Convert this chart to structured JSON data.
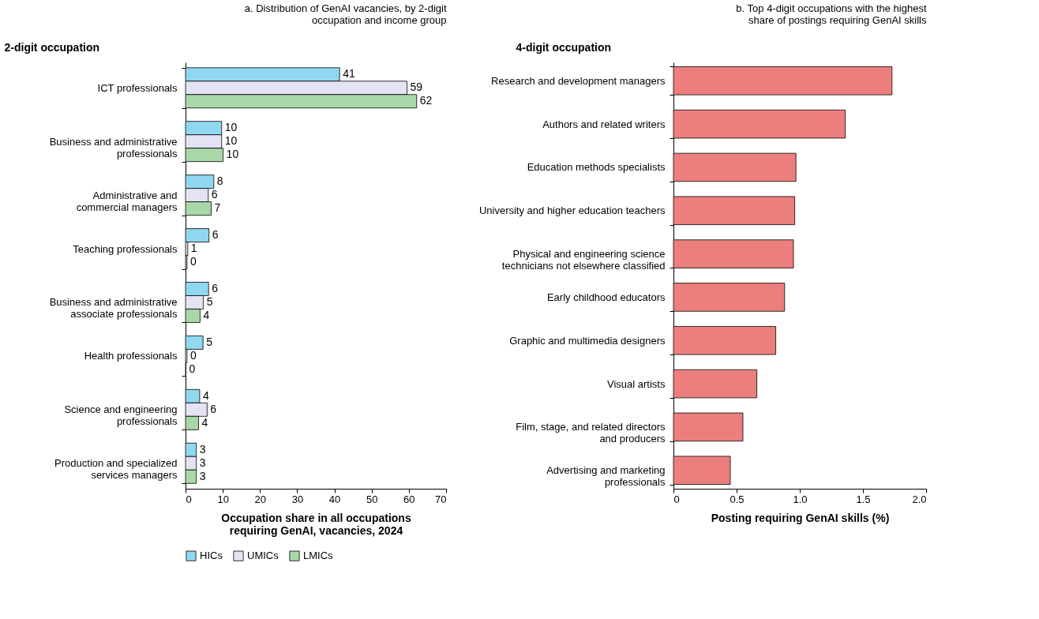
{
  "chart_data": [
    {
      "type": "bar",
      "orientation": "horizontal",
      "title": "a. Distribution of GenAI vacancies, by 2-digit\noccupation and income group",
      "ylabel": "2-digit occupation",
      "xlabel": "Occupation share in all occupations\nrequiring GenAI, vacancies, 2024",
      "categories": [
        "ICT professionals",
        "Business and administrative\nprofessionals",
        "Administrative and\ncommercial managers",
        "Teaching professionals",
        "Business and administrative\nassociate professionals",
        "Health professionals",
        "Science and engineering\nprofessionals",
        "Production and specialized\nservices managers"
      ],
      "series": [
        {
          "name": "HICs",
          "color": "#8fd8f0",
          "values": [
            41.4,
            9.7,
            7.6,
            6.3,
            6.2,
            4.7,
            3.8,
            2.9
          ],
          "value_labels": [
            "41",
            "10",
            "8",
            "6",
            "6",
            "5",
            "4",
            "3"
          ]
        },
        {
          "name": "UMICs",
          "color": "#e3e3f3",
          "values": [
            59.5,
            9.7,
            6.1,
            0.6,
            4.8,
            0.4,
            5.8,
            2.9
          ],
          "value_labels": [
            "59",
            "10",
            "6",
            "1",
            "5",
            "0",
            "6",
            "3"
          ]
        },
        {
          "name": "LMICs",
          "color": "#a8d8a8",
          "values": [
            62.1,
            10.1,
            6.9,
            0.4,
            3.9,
            0.1,
            3.5,
            2.9
          ],
          "value_labels": [
            "62",
            "10",
            "7",
            "0",
            "4",
            "0",
            "4",
            "3"
          ]
        }
      ],
      "xlim": [
        0,
        70
      ],
      "xticks": [
        0,
        10,
        20,
        30,
        40,
        50,
        60,
        70
      ],
      "legend": "bottom",
      "grid": false
    },
    {
      "type": "bar",
      "orientation": "horizontal",
      "title": "b. Top 4-digit occupations with the highest\nshare of postings requiring GenAI skills",
      "ylabel": "4-digit occupation",
      "xlabel": "Posting requiring GenAI skills (%)",
      "categories": [
        "Research and development managers",
        "Authors and related writers",
        "Education methods specialists",
        "University and higher education teachers",
        "Physical and engineering science\ntechnicians not elsewhere classified",
        "Early childhood educators",
        "Graphic and multimedia designers",
        "Visual artists",
        "Film, stage, and related directors\nand producers",
        "Advertising and marketing\nprofessionals"
      ],
      "series": [
        {
          "color": "#ec7f7d",
          "values": [
            1.73,
            1.36,
            0.97,
            0.96,
            0.95,
            0.88,
            0.81,
            0.66,
            0.55,
            0.45
          ]
        }
      ],
      "xlim": [
        0,
        2.0
      ],
      "xticks": [
        0,
        {
          "value": 0.5,
          "label": "0.5"
        },
        {
          "value": 1,
          "label": "1.0"
        },
        {
          "value": 1.5,
          "label": "1.5"
        },
        {
          "value": 2,
          "label": "2.0"
        }
      ],
      "grid": false
    }
  ]
}
